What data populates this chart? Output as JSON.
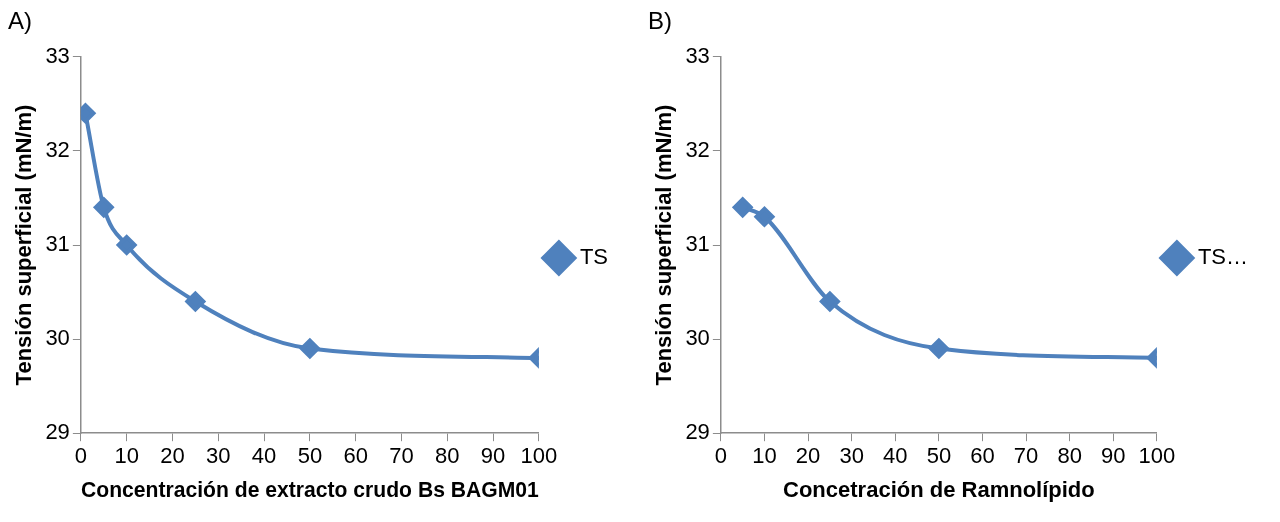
{
  "chart_data": [
    {
      "type": "line",
      "title": "A)",
      "xlabel": "Concentración de extracto crudo Bs BAGM01",
      "ylabel": "Tensión superficial (mN/m)",
      "xlim": [
        0,
        100
      ],
      "xticks": [
        0,
        10,
        20,
        30,
        40,
        50,
        60,
        70,
        80,
        90,
        100
      ],
      "ylim": [
        29,
        33
      ],
      "yticks": [
        29,
        30,
        31,
        32,
        33
      ],
      "grid": false,
      "legend": "right",
      "marker": "diamond",
      "series": [
        {
          "name": "TS",
          "color": "#4f81bd",
          "x": [
            1,
            5,
            10,
            25,
            50,
            100
          ],
          "values": [
            32.4,
            31.4,
            31.0,
            30.4,
            29.9,
            29.8
          ]
        }
      ]
    },
    {
      "type": "line",
      "title": "B)",
      "xlabel": "Concetración de Ramnolípido",
      "ylabel": "Tensión superficial (mN/m)",
      "xlim": [
        0,
        100
      ],
      "xticks": [
        0,
        10,
        20,
        30,
        40,
        50,
        60,
        70,
        80,
        90,
        100
      ],
      "ylim": [
        29,
        33
      ],
      "yticks": [
        29,
        30,
        31,
        32,
        33
      ],
      "grid": false,
      "legend": "right",
      "marker": "diamond",
      "series": [
        {
          "name": "TS…",
          "color": "#4f81bd",
          "x": [
            5,
            10,
            25,
            50,
            100
          ],
          "values": [
            31.4,
            31.3,
            30.4,
            29.9,
            29.8
          ]
        }
      ]
    }
  ]
}
